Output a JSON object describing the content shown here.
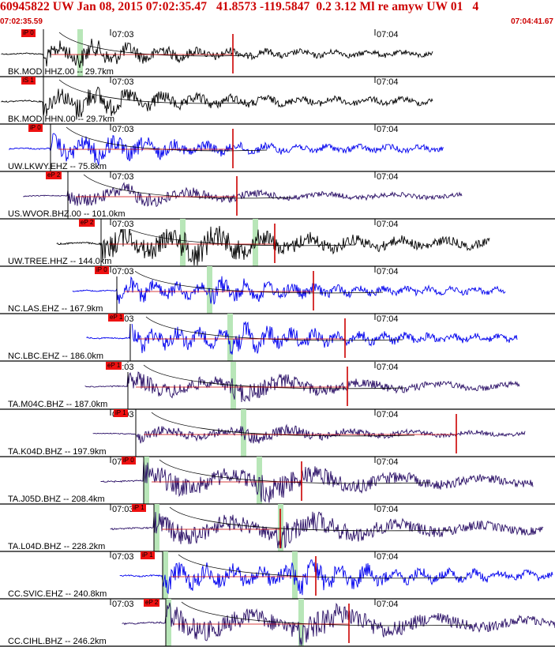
{
  "header": {
    "title": "60945822 UW Jan 08, 2015 07:02:35.47   41.8573 -119.5847  0.2 3.12 Ml re amyw UW 01   4",
    "start_time": "07:02:35.59",
    "end_time": "07:04:41.67"
  },
  "time_ticks": [
    "07:03",
    "07:04"
  ],
  "colors": {
    "header_text": "#cc0000",
    "pick_flag": "#ee1111",
    "theoretical_curve": "#000000",
    "phase_window": "#b8e6b8",
    "trace_black": "#000000",
    "trace_blue": "#0000ee",
    "trace_navy": "#2a0f66",
    "trace_red": "#cc0000"
  },
  "channels": [
    {
      "label": "BK.MOD.HHZ.00 -- 29.7km",
      "color": "black",
      "pick": "iP 0"
    },
    {
      "label": "BK.MOD.HHN.00 -- 29.7km",
      "color": "black",
      "pick": "iS 1"
    },
    {
      "label": "UW.LKWY.EHZ -- 75.8km",
      "color": "blue",
      "pick": "iP 0"
    },
    {
      "label": "US.WVOR.BHZ.00 -- 101.0km",
      "color": "navy",
      "pick": "eP 2"
    },
    {
      "label": "UW.TREE.HHZ -- 144.0km",
      "color": "black",
      "pick": "eP 2"
    },
    {
      "label": "NC.LAS.EHZ -- 167.9km",
      "color": "blue",
      "pick": "iP 0"
    },
    {
      "label": "NC.LBC.EHZ -- 186.0km",
      "color": "blue",
      "pick": "eP 1"
    },
    {
      "label": "TA.M04C.BHZ -- 187.0km",
      "color": "navy",
      "pick": "eP 1"
    },
    {
      "label": "TA.K04D.BHZ -- 197.9km",
      "color": "navy",
      "pick": "iP 1"
    },
    {
      "label": "TA.J05D.BHZ -- 208.4km",
      "color": "navy",
      "pick": "iP 0"
    },
    {
      "label": "TA.L04D.BHZ -- 228.2km",
      "color": "navy",
      "pick": "iP 1"
    },
    {
      "label": "CC.SVIC.EHZ -- 240.8km",
      "color": "blue",
      "pick": "iP 1"
    },
    {
      "label": "CC.CIHL.BHZ -- 246.2km",
      "color": "navy",
      "pick": "eP 2"
    }
  ]
}
